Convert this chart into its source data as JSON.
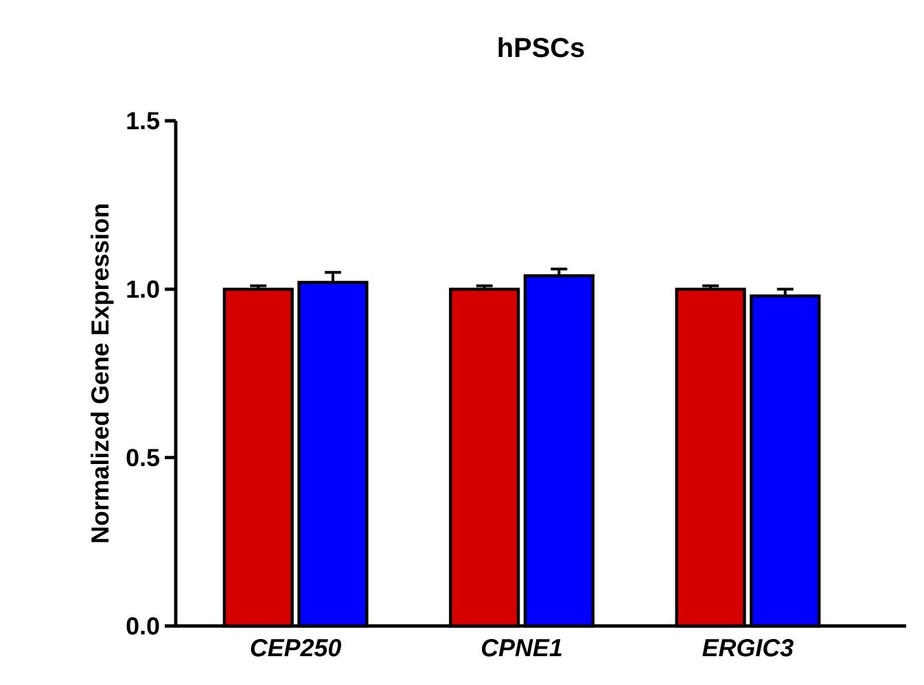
{
  "chart_data": {
    "type": "bar",
    "title": "hPSCs",
    "ylabel": "Normalized Gene Expression",
    "categories": [
      "CEP250",
      "CPNE1",
      "ERGIC3"
    ],
    "series": [
      {
        "color": "#d40000",
        "values": [
          1.0,
          1.0,
          1.0
        ],
        "errors": [
          0.01,
          0.01,
          0.01
        ]
      },
      {
        "color": "#0000ff",
        "values": [
          1.02,
          1.04,
          0.98
        ],
        "errors": [
          0.03,
          0.02,
          0.02
        ]
      }
    ],
    "ylim": [
      0,
      1.5
    ],
    "yticks": [
      {
        "value": 0,
        "label": "0.0"
      },
      {
        "value": 0.5,
        "label": "0.5"
      },
      {
        "value": 1,
        "label": "1.0"
      },
      {
        "value": 1.5,
        "label": "1.5"
      }
    ],
    "grid": false,
    "legend": false
  }
}
